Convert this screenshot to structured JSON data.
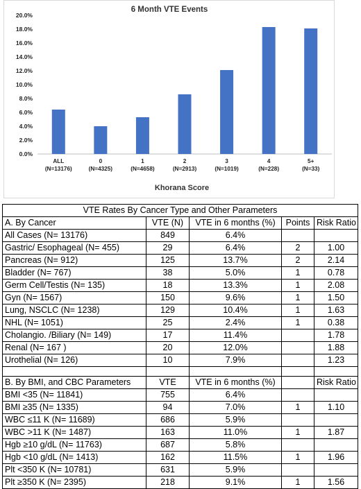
{
  "chart_data": {
    "type": "bar",
    "title": "6 Month VTE Events",
    "xlabel": "Khorana Score",
    "ylabel": "",
    "categories": [
      "ALL",
      "0",
      "1",
      "2",
      "3",
      "4",
      "5+"
    ],
    "category_counts": [
      "(N=13176)",
      "(N=4325)",
      "(N=4658)",
      "(N=2913)",
      "(N=1019)",
      "(N=228)",
      "(N=33)"
    ],
    "values": [
      6.4,
      4.0,
      5.3,
      8.6,
      12.1,
      18.3,
      18.1
    ],
    "ylim": [
      0,
      20
    ],
    "yticks": [
      "0.0%",
      "2.0%",
      "4.0%",
      "6.0%",
      "8.0%",
      "10.0%",
      "12.0%",
      "14.0%",
      "16.0%",
      "18.0%",
      "20.0%"
    ],
    "grid": false,
    "bar_color": "#4472c4"
  },
  "table": {
    "caption": "VTE Rates By Cancer Type and Other Parameters",
    "section_a": {
      "headers": [
        "A.  By Cancer",
        "VTE (N)",
        "VTE in 6 months (%)",
        "Points",
        "Risk Ratio"
      ],
      "rows": [
        [
          "All Cases (N= 13176)",
          "849",
          "6.4%",
          "",
          ""
        ],
        [
          "Gastric/ Esophageal  (N= 455)",
          "29",
          "6.4%",
          "2",
          "1.00"
        ],
        [
          "Pancreas (N= 912)",
          "125",
          "13.7%",
          "2",
          "2.14"
        ],
        [
          "Bladder (N= 767)",
          "38",
          "5.0%",
          "1",
          "0.78"
        ],
        [
          "Germ Cell/Testis (N= 135)",
          "18",
          "13.3%",
          "1",
          "2.08"
        ],
        [
          "Gyn (N= 1567)",
          "150",
          "9.6%",
          "1",
          "1.50"
        ],
        [
          "Lung, NSCLC (N= 1238)",
          "129",
          "10.4%",
          "1",
          "1.63"
        ],
        [
          "NHL (N= 1051)",
          "25",
          "2.4%",
          "1",
          "0.38"
        ],
        [
          "Cholangio. /Biliary (N= 149)",
          "17",
          "11.4%",
          "",
          "1.78"
        ],
        [
          "Renal (N= 167 )",
          "20",
          "12.0%",
          "",
          "1.88"
        ],
        [
          "Urothelial  (N= 126)",
          "10",
          "7.9%",
          "",
          "1.23"
        ]
      ]
    },
    "section_b": {
      "headers": [
        "B.  By BMI, and CBC Parameters",
        "VTE",
        "VTE in 6 months (%)",
        "",
        "Risk Ratio"
      ],
      "rows": [
        [
          "BMI <35  (N= 11841)",
          "755",
          "6.4%",
          "",
          ""
        ],
        [
          "BMI ≥35  (N= 1335)",
          "94",
          "7.0%",
          "1",
          "1.10"
        ],
        [
          "WBC ≤11 K  (N= 11689)",
          "686",
          "5.9%",
          "",
          ""
        ],
        [
          "WBC >11 K  (N= 1487)",
          "163",
          "11.0%",
          "1",
          "1.87"
        ],
        [
          "Hgb ≥10 g/dL  (N= 11763)",
          "687",
          "5.8%",
          "",
          ""
        ],
        [
          "Hgb <10 g/dL  (N= 1413)",
          "162",
          "11.5%",
          "1",
          "1.96"
        ],
        [
          "Plt <350 K  (N= 10781)",
          "631",
          "5.9%",
          "",
          ""
        ],
        [
          "Plt ≥350 K (N= 2395)",
          "218",
          "9.1%",
          "1",
          "1.56"
        ]
      ]
    }
  }
}
